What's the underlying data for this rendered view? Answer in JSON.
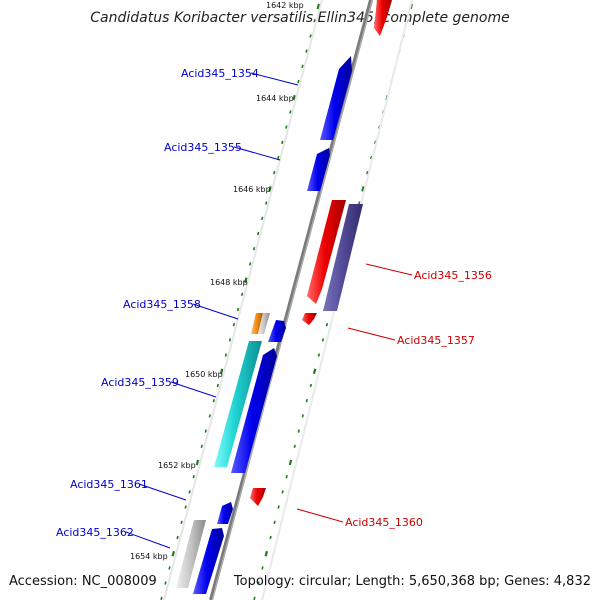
{
  "title": "Candidatus Koribacter versatilis Ellin345, complete genome",
  "footer": {
    "accession": "Accession: NC_008009",
    "topology": "Topology: circular; Length: 5,650,368 bp; Genes: 4,832"
  },
  "colors": {
    "backbone": "#808080",
    "tick": "#1f7a1f",
    "forward_gene": "#0000ee",
    "reverse_gene": "#ee0000",
    "label_forward": "#0000cc",
    "label_reverse": "#cc0000"
  },
  "scale_labels": [
    {
      "kbp": 1642,
      "text": "1642 kbp"
    },
    {
      "kbp": 1644,
      "text": "1644 kbp"
    },
    {
      "kbp": 1646,
      "text": "1646 kbp"
    },
    {
      "kbp": 1648,
      "text": "1648 kbp"
    },
    {
      "kbp": 1650,
      "text": "1650 kbp"
    },
    {
      "kbp": 1652,
      "text": "1652 kbp"
    },
    {
      "kbp": 1654,
      "text": "1654 kbp"
    }
  ],
  "labels_left": [
    {
      "text": "Acid345_1354"
    },
    {
      "text": "Acid345_1355"
    },
    {
      "text": "Acid345_1358"
    },
    {
      "text": "Acid345_1359"
    },
    {
      "text": "Acid345_1361"
    },
    {
      "text": "Acid345_1362"
    }
  ],
  "labels_right": [
    {
      "text": "Acid345_1356"
    },
    {
      "text": "Acid345_1357"
    },
    {
      "text": "Acid345_1360"
    }
  ]
}
